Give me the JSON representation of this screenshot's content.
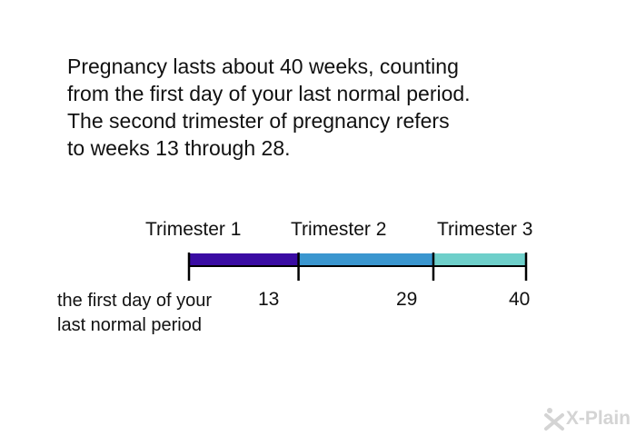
{
  "intro": {
    "lines": [
      "Pregnancy lasts about 40 weeks, counting",
      "from the first day of your last normal period.",
      "The second trimester of pregnancy refers",
      "to weeks 13 through 28."
    ]
  },
  "timeline": {
    "start_week": 0,
    "end_week": 40,
    "start_label_lines": [
      "the first day of your",
      "last normal period"
    ],
    "segments": [
      {
        "label": "Trimester 1",
        "from_week": 0,
        "to_week": 13,
        "color": "#3a0ca3"
      },
      {
        "label": "Trimester 2",
        "from_week": 13,
        "to_week": 29,
        "color": "#3a96cf"
      },
      {
        "label": "Trimester 3",
        "from_week": 29,
        "to_week": 40,
        "color": "#6ecfca"
      }
    ],
    "ticks": [
      "13",
      "29",
      "40"
    ]
  },
  "watermark": {
    "text": "X-Plain",
    "color": "#d4d4d4"
  }
}
